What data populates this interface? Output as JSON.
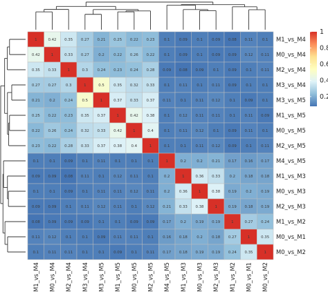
{
  "chart_data": {
    "type": "heatmap",
    "row_labels": [
      "M1_vs_M4",
      "M0_vs_M4",
      "M2_vs_M4",
      "M3_vs_M4",
      "M3_vs_M5",
      "M1_vs_M5",
      "M0_vs_M5",
      "M2_vs_M5",
      "M4_vs_M5",
      "M1_vs_M3",
      "M0_vs_M3",
      "M2_vs_M3",
      "M1_vs_M2",
      "M0_vs_M1",
      "M0_vs_M2"
    ],
    "col_labels": [
      "M1_vs_M4",
      "M0_vs_M4",
      "M2_vs_M4",
      "M3_vs_M4",
      "M3_vs_M5",
      "M1_vs_M5",
      "M0_vs_M5",
      "M2_vs_M5",
      "M4_vs_M5",
      "M1_vs_M3",
      "M0_vs_M3",
      "M2_vs_M3",
      "M1_vs_M2",
      "M0_vs_M1",
      "M0_vs_M2"
    ],
    "values": [
      [
        1.0,
        0.42,
        0.35,
        0.27,
        0.21,
        0.25,
        0.22,
        0.23,
        0.1,
        0.09,
        0.1,
        0.09,
        0.08,
        0.11,
        0.1
      ],
      [
        0.42,
        1.0,
        0.33,
        0.27,
        0.2,
        0.22,
        0.26,
        0.22,
        0.1,
        0.09,
        0.1,
        0.09,
        0.09,
        0.12,
        0.11
      ],
      [
        0.35,
        0.33,
        1.0,
        0.3,
        0.24,
        0.23,
        0.24,
        0.28,
        0.09,
        0.08,
        0.09,
        0.1,
        0.09,
        0.1,
        0.11
      ],
      [
        0.27,
        0.27,
        0.3,
        1.0,
        0.5,
        0.35,
        0.32,
        0.33,
        0.1,
        0.11,
        0.1,
        0.11,
        0.09,
        0.1,
        0.1
      ],
      [
        0.21,
        0.2,
        0.24,
        0.5,
        1.0,
        0.37,
        0.33,
        0.37,
        0.11,
        0.1,
        0.11,
        0.12,
        0.1,
        0.09,
        0.1
      ],
      [
        0.25,
        0.22,
        0.23,
        0.35,
        0.37,
        1.0,
        0.42,
        0.38,
        0.1,
        0.12,
        0.11,
        0.11,
        0.1,
        0.11,
        0.09
      ],
      [
        0.22,
        0.26,
        0.24,
        0.32,
        0.33,
        0.42,
        1.0,
        0.4,
        0.1,
        0.11,
        0.12,
        0.1,
        0.09,
        0.11,
        0.1
      ],
      [
        0.23,
        0.22,
        0.28,
        0.33,
        0.37,
        0.38,
        0.4,
        1.0,
        0.1,
        0.1,
        0.11,
        0.12,
        0.09,
        0.1,
        0.11
      ],
      [
        0.1,
        0.1,
        0.09,
        0.1,
        0.11,
        0.1,
        0.1,
        0.1,
        1.0,
        0.2,
        0.2,
        0.21,
        0.17,
        0.16,
        0.17
      ],
      [
        0.09,
        0.09,
        0.08,
        0.11,
        0.1,
        0.12,
        0.11,
        0.1,
        0.2,
        1.0,
        0.36,
        0.33,
        0.2,
        0.18,
        0.18
      ],
      [
        0.1,
        0.1,
        0.09,
        0.1,
        0.11,
        0.11,
        0.12,
        0.11,
        0.2,
        0.36,
        1.0,
        0.38,
        0.19,
        0.2,
        0.19
      ],
      [
        0.09,
        0.09,
        0.1,
        0.11,
        0.12,
        0.11,
        0.1,
        0.12,
        0.21,
        0.33,
        0.38,
        1.0,
        0.19,
        0.18,
        0.19
      ],
      [
        0.08,
        0.09,
        0.09,
        0.09,
        0.1,
        0.1,
        0.09,
        0.09,
        0.17,
        0.2,
        0.19,
        0.19,
        1.0,
        0.27,
        0.24
      ],
      [
        0.11,
        0.12,
        0.1,
        0.1,
        0.09,
        0.11,
        0.11,
        0.1,
        0.16,
        0.18,
        0.2,
        0.18,
        0.27,
        1.0,
        0.35
      ],
      [
        0.1,
        0.11,
        0.11,
        0.1,
        0.1,
        0.09,
        0.1,
        0.11,
        0.17,
        0.18,
        0.19,
        0.19,
        0.24,
        0.35,
        1.0
      ]
    ],
    "value_range": [
      0.08,
      1.0
    ],
    "legend": {
      "position": "right",
      "ticks": [
        0.2,
        0.4,
        0.6,
        0.8,
        1
      ],
      "tick_labels": [
        "0.2",
        "0.4",
        "0.6",
        "0.8",
        "1"
      ],
      "palette": [
        "#4575b4",
        "#91bfdb",
        "#e0f3f8",
        "#ffffbf",
        "#fee090",
        "#fc8d59",
        "#d73027"
      ]
    },
    "grid": true,
    "dendrograms": [
      "top",
      "left"
    ]
  }
}
